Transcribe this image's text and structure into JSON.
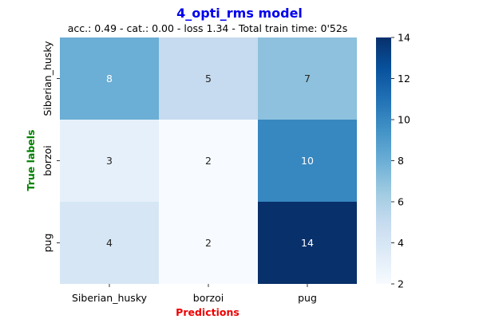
{
  "chart_data": {
    "type": "heatmap",
    "title": "4_opti_rms model",
    "subtitle": "acc.: 0.49 - cat.: 0.00 - loss 1.34 - Total train time: 0'52s",
    "xlabel": "Predictions",
    "ylabel": "True labels",
    "x_categories": [
      "Siberian_husky",
      "borzoi",
      "pug"
    ],
    "y_categories": [
      "Siberian_husky",
      "borzoi",
      "pug"
    ],
    "values": [
      [
        8,
        5,
        7
      ],
      [
        3,
        2,
        10
      ],
      [
        4,
        2,
        14
      ]
    ],
    "colorbar": {
      "min": 2,
      "max": 14,
      "ticks": [
        "2",
        "4",
        "6",
        "8",
        "10",
        "12",
        "14"
      ],
      "colormap": "Blues"
    },
    "colors": {
      "title": "#0000ee",
      "xlabel": "#ee0000",
      "ylabel": "#008000"
    }
  }
}
